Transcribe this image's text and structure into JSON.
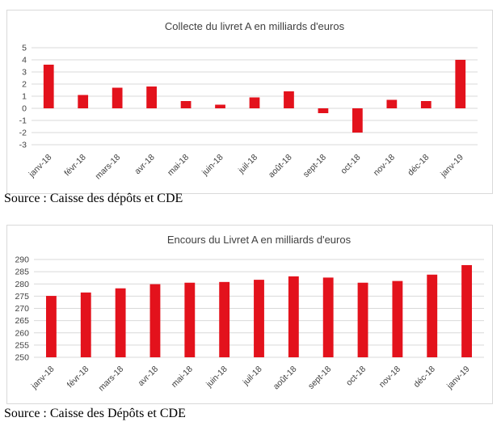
{
  "chart_data": [
    {
      "type": "bar",
      "title": "Collecte du livret A en milliards d'euros",
      "categories": [
        "janv-18",
        "févr-18",
        "mars-18",
        "avr-18",
        "mai-18",
        "juin-18",
        "juil-18",
        "août-18",
        "sept-18",
        "oct-18",
        "nov-18",
        "déc-18",
        "janv-19"
      ],
      "values": [
        3.6,
        1.1,
        1.7,
        1.8,
        0.6,
        0.3,
        0.9,
        1.4,
        -0.4,
        -2.0,
        0.7,
        0.6,
        4.0
      ],
      "ylim": [
        -3,
        5
      ],
      "yticks": [
        -3,
        -2,
        -1,
        0,
        1,
        2,
        3,
        4,
        5
      ],
      "grid": true,
      "color": "#e3121c",
      "source": "Source : Caisse des dépôts et CDE"
    },
    {
      "type": "bar",
      "title": "Encours du Livret A en milliards d'euros",
      "categories": [
        "janv-18",
        "févr-18",
        "mars-18",
        "avr-18",
        "mai-18",
        "juin-18",
        "juil-18",
        "août-18",
        "sept-18",
        "oct-18",
        "nov-18",
        "déc-18",
        "janv-19"
      ],
      "values": [
        275.1,
        276.5,
        278.2,
        279.9,
        280.5,
        280.8,
        281.7,
        283.1,
        282.6,
        280.5,
        281.2,
        283.8,
        287.7
      ],
      "ylim": [
        250,
        290
      ],
      "yticks": [
        250,
        255,
        260,
        265,
        270,
        275,
        280,
        285,
        290
      ],
      "grid": true,
      "color": "#e3121c",
      "source": "Source : Caisse des Dépôts et CDE"
    }
  ]
}
